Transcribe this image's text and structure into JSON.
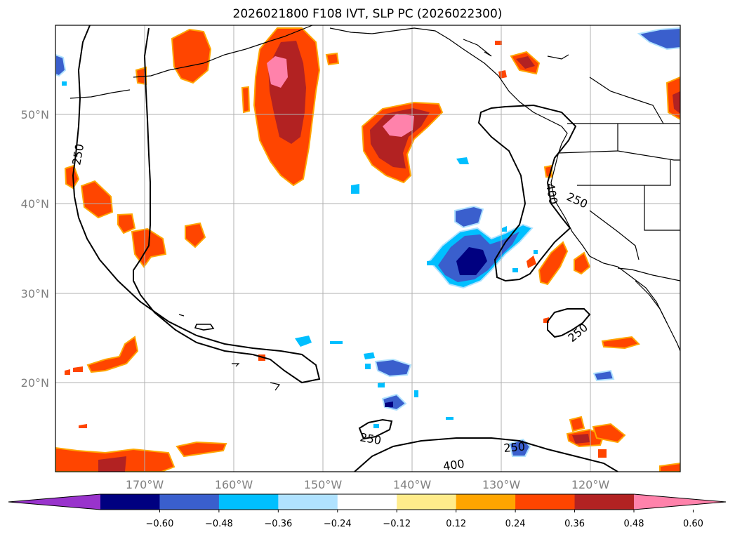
{
  "title": "2026021800 F108 IVT, SLP PC (2026022300)",
  "lat_labels": [
    "50°N",
    "40°N",
    "30°N",
    "20°N"
  ],
  "lon_labels": [
    "170°W",
    "160°W",
    "150°W",
    "140°W",
    "130°W",
    "120°W"
  ],
  "colorbar": {
    "colors": [
      "#9933cc",
      "#000080",
      "#3a5fcd",
      "#00bfff",
      "#b0e2ff",
      "#ffffff",
      "#ffec8b",
      "#ffa500",
      "#ff4500",
      "#b22222",
      "#ff82ab"
    ],
    "ticks": [
      "−0.60",
      "−0.48",
      "−0.36",
      "−0.24",
      "−0.12",
      "0.12",
      "0.24",
      "0.36",
      "0.48",
      "0.60"
    ]
  },
  "contour_labels": [
    "250",
    "400",
    "250",
    "250",
    "250",
    "250",
    "400"
  ]
}
